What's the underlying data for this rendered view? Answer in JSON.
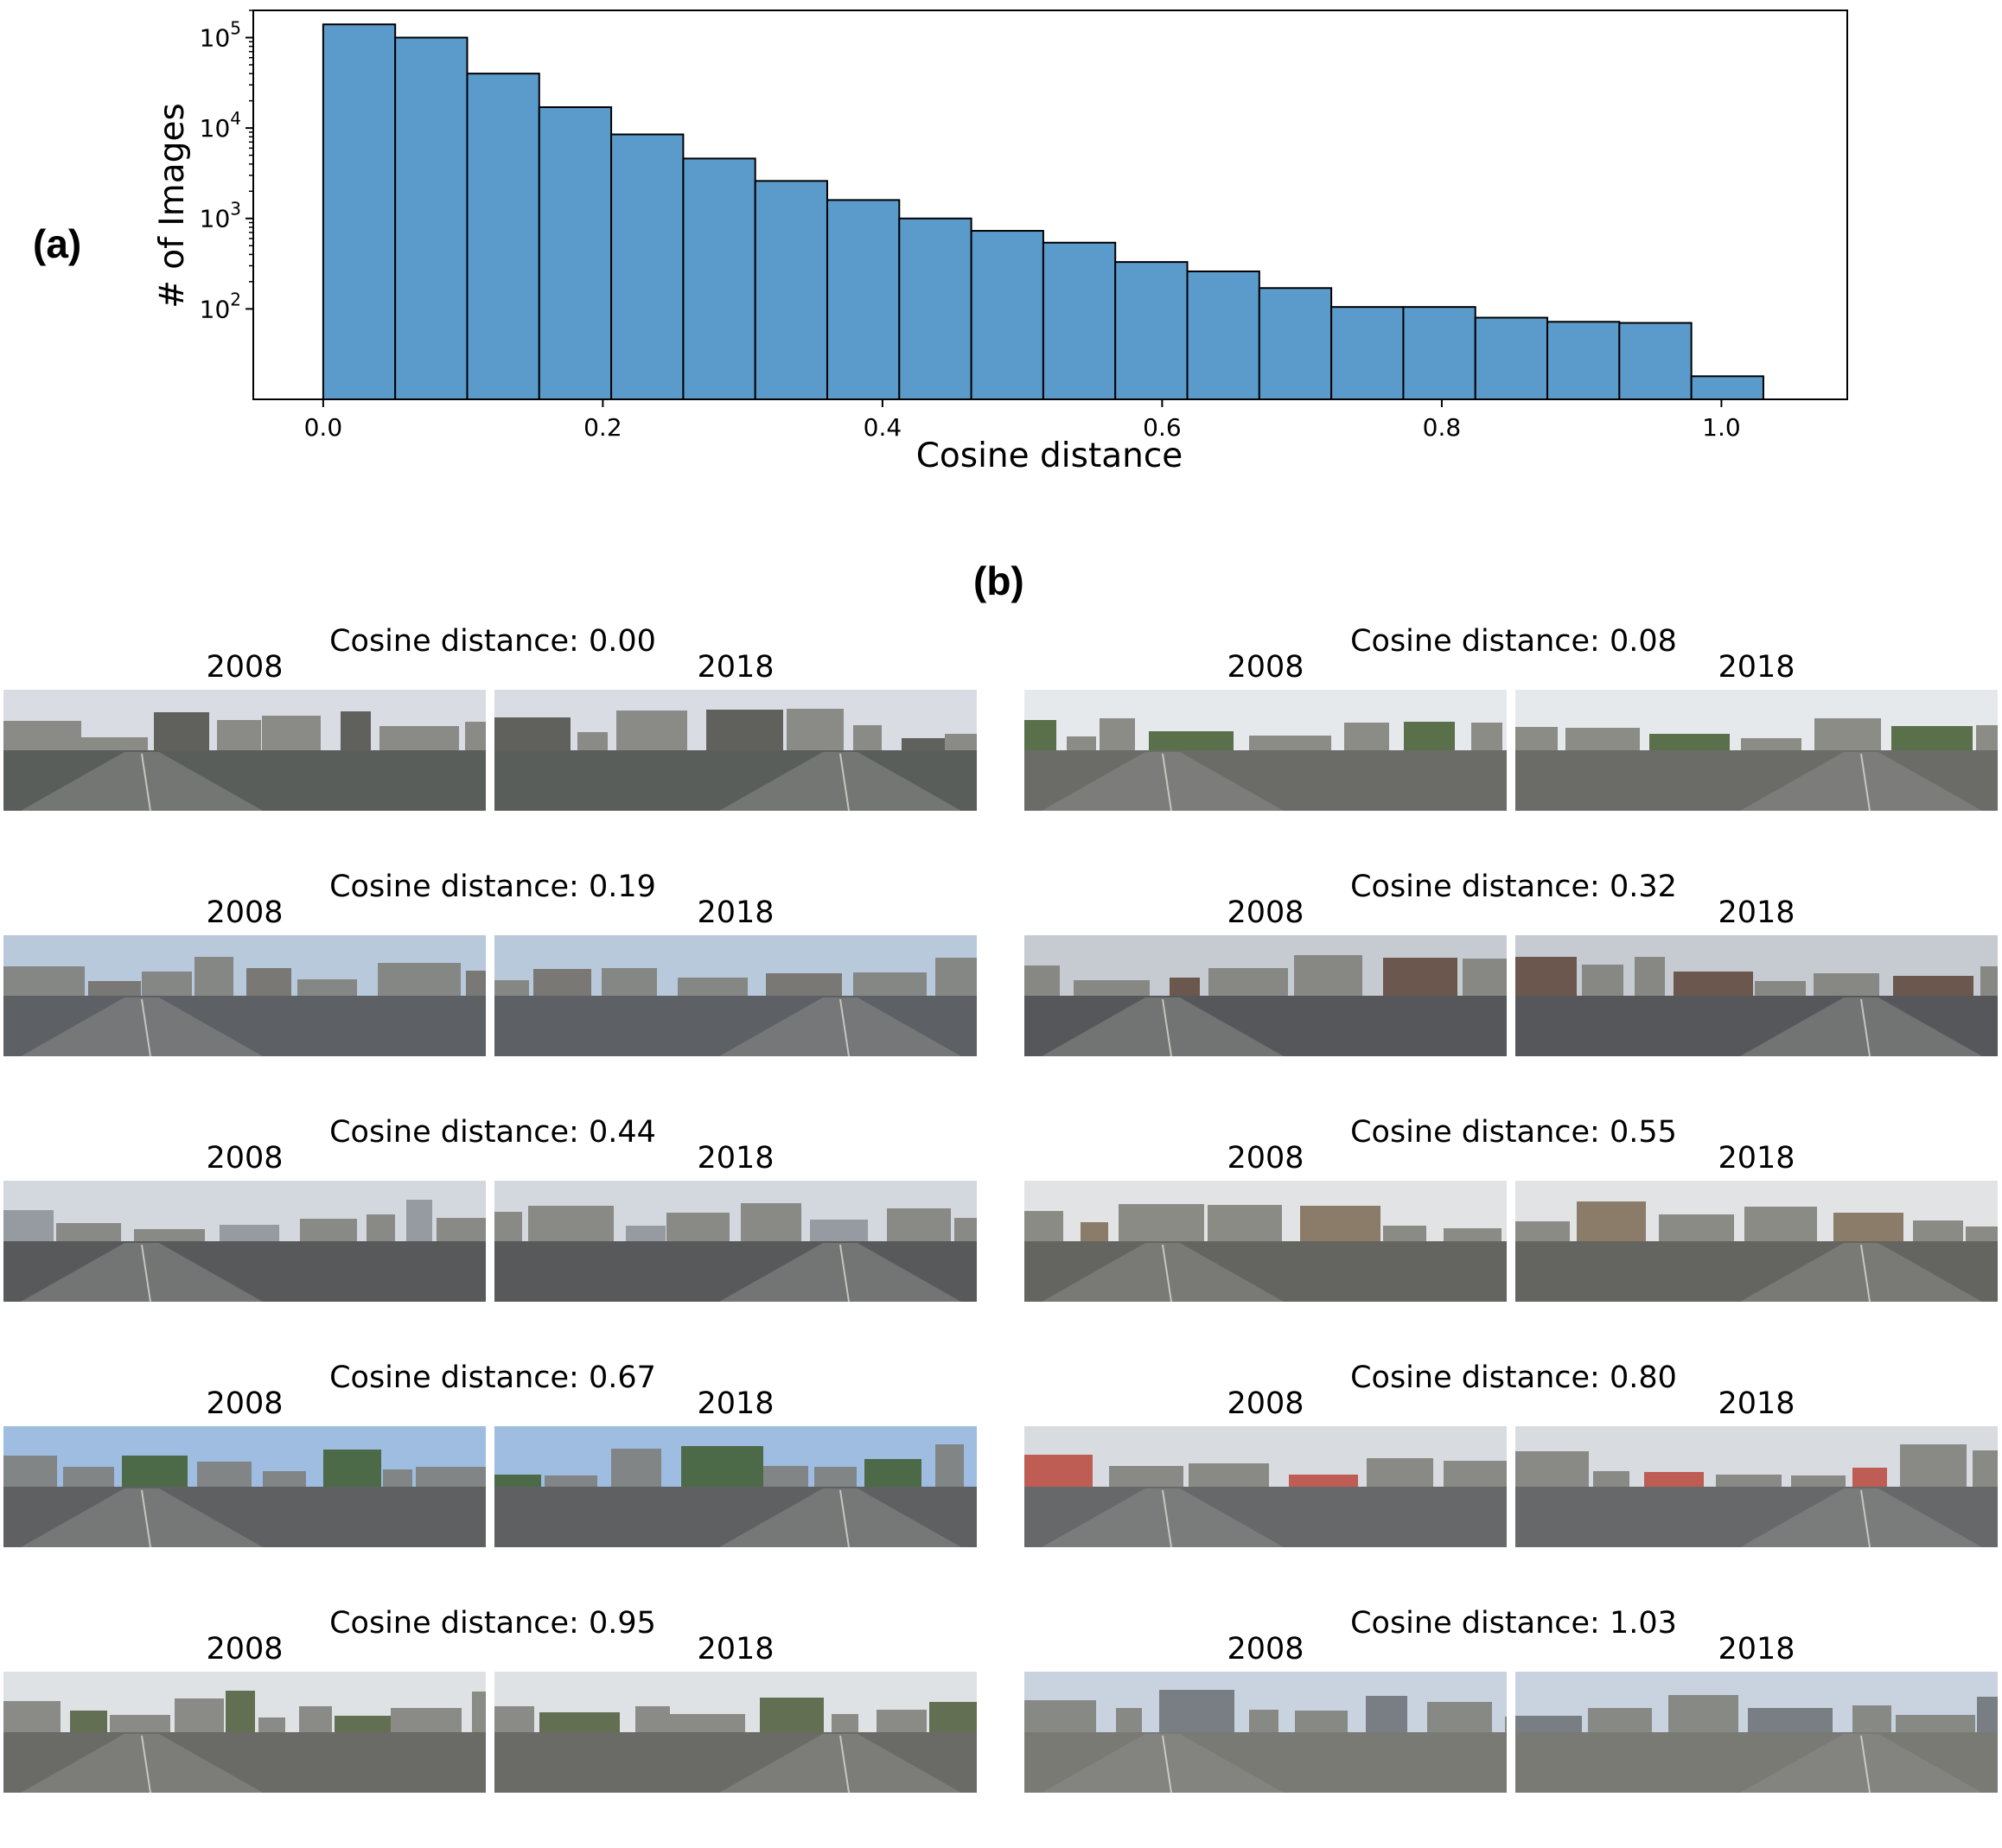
{
  "panel_a_label": "(a)",
  "panel_b_label": "(b)",
  "chart_data": {
    "type": "bar",
    "subtype": "histogram",
    "title": "",
    "xlabel": "Cosine distance",
    "ylabel": "# of Images",
    "yscale": "log",
    "xlim": [
      -0.05,
      1.09
    ],
    "ylim": [
      10,
      200000
    ],
    "xticks": [
      "0.0",
      "0.2",
      "0.4",
      "0.6",
      "0.8",
      "1.0"
    ],
    "yticks": [
      {
        "base": "10",
        "exp": "2"
      },
      {
        "base": "10",
        "exp": "3"
      },
      {
        "base": "10",
        "exp": "4"
      },
      {
        "base": "10",
        "exp": "5"
      }
    ],
    "bin_edges": [
      0.0,
      0.0515,
      0.103,
      0.1545,
      0.206,
      0.2575,
      0.309,
      0.3605,
      0.412,
      0.4635,
      0.515,
      0.5665,
      0.618,
      0.6695,
      0.721,
      0.7725,
      0.824,
      0.8755,
      0.927,
      0.9785,
      1.03
    ],
    "values": [
      140000,
      100000,
      40000,
      17000,
      8500,
      4600,
      2600,
      1600,
      1000,
      730,
      540,
      330,
      260,
      170,
      105,
      105,
      80,
      72,
      70,
      18
    ],
    "bar_color": "#5b9bcb",
    "edge_color": "#000000"
  },
  "pairs": [
    {
      "title": "Cosine distance: 0.00",
      "year_left": "2008",
      "year_right": "2018"
    },
    {
      "title": "Cosine distance: 0.08",
      "year_left": "2008",
      "year_right": "2018"
    },
    {
      "title": "Cosine distance: 0.19",
      "year_left": "2008",
      "year_right": "2018"
    },
    {
      "title": "Cosine distance: 0.32",
      "year_left": "2008",
      "year_right": "2018"
    },
    {
      "title": "Cosine distance: 0.44",
      "year_left": "2008",
      "year_right": "2018"
    },
    {
      "title": "Cosine distance: 0.55",
      "year_left": "2008",
      "year_right": "2018"
    },
    {
      "title": "Cosine distance: 0.67",
      "year_left": "2008",
      "year_right": "2018"
    },
    {
      "title": "Cosine distance: 0.80",
      "year_left": "2008",
      "year_right": "2018"
    },
    {
      "title": "Cosine distance: 0.95",
      "year_left": "2008",
      "year_right": "2018"
    },
    {
      "title": "Cosine distance: 1.03",
      "year_left": "2008",
      "year_right": "2018"
    }
  ],
  "scene_palettes": [
    {
      "sky": "#d9dde3",
      "ground": "#5a5e5a",
      "mid": "#4a4a44"
    },
    {
      "sky": "#e6e9ec",
      "ground": "#6b6c68",
      "mid": "#3f5a2f"
    },
    {
      "sky": "#b9c9dc",
      "ground": "#5d6064",
      "mid": "#6d6a62"
    },
    {
      "sky": "#c6cbd2",
      "ground": "#55575a",
      "mid": "#5b4336"
    },
    {
      "sky": "#d3d7de",
      "ground": "#57595b",
      "mid": "#8a9096"
    },
    {
      "sky": "#e2e3e4",
      "ground": "#646461",
      "mid": "#7a6a52"
    },
    {
      "sky": "#9fbde0",
      "ground": "#5e6062",
      "mid": "#3d5a2d"
    },
    {
      "sky": "#d8dbe0",
      "ground": "#66686a",
      "mid": "#b8463b"
    },
    {
      "sky": "#dfe2e5",
      "ground": "#6a6a66",
      "mid": "#4e5a3a"
    },
    {
      "sky": "#c9d3df",
      "ground": "#7a7a74",
      "mid": "#6a6e74"
    }
  ]
}
